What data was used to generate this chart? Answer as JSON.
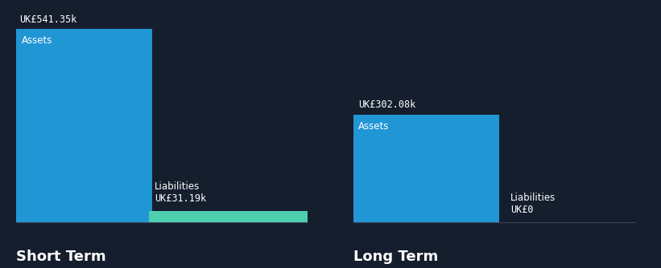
{
  "background_color": "#151e2d",
  "assets_color": "#2196d4",
  "liabilities_color": "#4ecfb0",
  "text_color": "#ffffff",
  "st_assets_value": 541.35,
  "st_liab_value": 31.19,
  "lt_assets_value": 302.08,
  "lt_liab_value": 0,
  "st_assets_label": "UK£541.35k",
  "st_liab_label": "UK£31.19k",
  "lt_assets_label": "UK£302.08k",
  "lt_liab_label": "UK£0",
  "group_labels": [
    "Short Term",
    "Long Term"
  ],
  "bar_inner_label": "Assets",
  "liab_text": "Liabilities",
  "value_label_fontsize": 8.5,
  "bar_label_fontsize": 8.5,
  "group_label_fontsize": 13,
  "ylim_max": 600,
  "divider_color": "#2a3347",
  "baseline_color": "#3a4357"
}
